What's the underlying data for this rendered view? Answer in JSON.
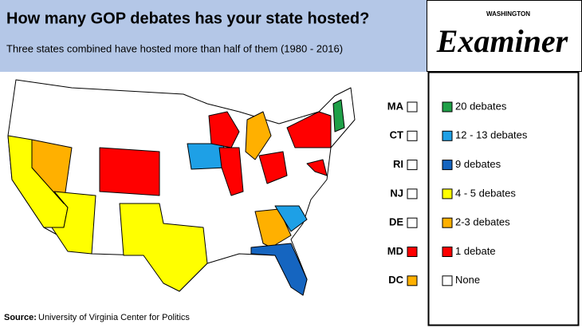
{
  "header": {
    "title": "How many GOP debates has your state hosted?",
    "subtitle": "Three states combined have hosted more than half of them (1980 - 2016)"
  },
  "logo": {
    "top": "WASHINGTON",
    "name": "Examiner"
  },
  "legend": [
    {
      "label": "20 debates",
      "color": "#1fa048"
    },
    {
      "label": "12 - 13 debates",
      "color": "#1ea0e6"
    },
    {
      "label": "9 debates",
      "color": "#1565c0"
    },
    {
      "label": "4 - 5 debates",
      "color": "#ffff00"
    },
    {
      "label": "2-3 debates",
      "color": "#ffb000"
    },
    {
      "label": "1 debate",
      "color": "#ff0000"
    },
    {
      "label": "None",
      "color": "#ffffff"
    }
  ],
  "small_states": [
    {
      "label": "MA",
      "color": "#ffffff"
    },
    {
      "label": "CT",
      "color": "#ffffff"
    },
    {
      "label": "RI",
      "color": "#ffffff"
    },
    {
      "label": "NJ",
      "color": "#ffffff"
    },
    {
      "label": "DE",
      "color": "#ffffff"
    },
    {
      "label": "MD",
      "color": "#ff0000"
    },
    {
      "label": "DC",
      "color": "#ffb000"
    }
  ],
  "source": {
    "label": "Source:",
    "text": "University of Virginia Center for Politics"
  }
}
